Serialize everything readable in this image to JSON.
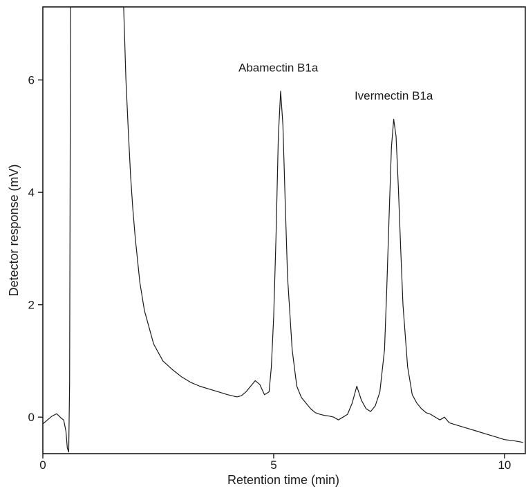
{
  "chart_data": {
    "type": "line",
    "title": "",
    "xlabel": "Retention time (min)",
    "ylabel": "Detector response (mV)",
    "xlim": [
      0,
      10.45
    ],
    "ylim": [
      -0.65,
      7.3
    ],
    "xticks": [
      0,
      5,
      10
    ],
    "xtick_labels": [
      "0",
      "5",
      "10"
    ],
    "yticks": [
      0,
      2,
      4,
      6
    ],
    "ytick_labels": [
      "0",
      "2",
      "4",
      "6"
    ],
    "grid": false,
    "legend": "none",
    "line_color": "#1a1a1a",
    "series": [
      {
        "x": [
          0.0,
          0.1,
          0.2,
          0.3,
          0.4,
          0.45,
          0.5,
          0.53,
          0.56,
          0.58,
          0.6,
          0.62,
          0.65,
          0.7,
          0.75,
          0.8,
          0.9,
          1.0,
          1.2,
          1.4,
          1.6,
          1.7,
          1.75,
          1.8,
          1.85,
          1.9,
          1.95,
          2.0,
          2.1,
          2.2,
          2.3,
          2.4,
          2.5,
          2.6,
          2.8,
          3.0,
          3.2,
          3.4,
          3.6,
          3.8,
          4.0,
          4.2,
          4.3,
          4.4,
          4.5,
          4.6,
          4.7,
          4.8,
          4.9,
          4.95,
          5.0,
          5.05,
          5.1,
          5.15,
          5.2,
          5.25,
          5.3,
          5.4,
          5.5,
          5.6,
          5.7,
          5.8,
          5.9,
          6.0,
          6.1,
          6.2,
          6.3,
          6.4,
          6.5,
          6.6,
          6.7,
          6.8,
          6.9,
          7.0,
          7.1,
          7.2,
          7.3,
          7.4,
          7.45,
          7.5,
          7.55,
          7.6,
          7.65,
          7.7,
          7.75,
          7.8,
          7.9,
          8.0,
          8.1,
          8.2,
          8.3,
          8.4,
          8.5,
          8.6,
          8.7,
          8.8,
          9.0,
          9.2,
          9.4,
          9.6,
          9.8,
          10.0,
          10.2,
          10.4
        ],
        "y": [
          -0.12,
          -0.05,
          0.02,
          0.06,
          -0.02,
          -0.05,
          -0.25,
          -0.55,
          -0.62,
          0.6,
          7.3,
          7.3,
          7.3,
          7.3,
          7.3,
          7.3,
          7.3,
          7.3,
          7.3,
          7.3,
          7.3,
          7.3,
          7.3,
          6.0,
          5.1,
          4.3,
          3.7,
          3.2,
          2.4,
          1.9,
          1.6,
          1.3,
          1.15,
          1.0,
          0.85,
          0.72,
          0.62,
          0.55,
          0.5,
          0.45,
          0.4,
          0.36,
          0.38,
          0.45,
          0.55,
          0.65,
          0.58,
          0.4,
          0.45,
          0.9,
          1.8,
          3.2,
          5.0,
          5.8,
          5.2,
          3.8,
          2.5,
          1.2,
          0.55,
          0.35,
          0.25,
          0.15,
          0.08,
          0.05,
          0.03,
          0.02,
          0.0,
          -0.05,
          0.0,
          0.05,
          0.25,
          0.55,
          0.3,
          0.15,
          0.1,
          0.2,
          0.45,
          1.2,
          2.3,
          3.6,
          4.8,
          5.3,
          5.0,
          4.1,
          3.0,
          2.0,
          0.9,
          0.4,
          0.25,
          0.15,
          0.08,
          0.05,
          0.0,
          -0.05,
          0.0,
          -0.1,
          -0.15,
          -0.2,
          -0.25,
          -0.3,
          -0.35,
          -0.4,
          -0.42,
          -0.45
        ]
      }
    ],
    "annotations": [
      {
        "text": "Abamectin B1a",
        "x": 5.1,
        "y": 6.15
      },
      {
        "text": "Ivermectin B1a",
        "x": 7.6,
        "y": 5.65
      }
    ]
  }
}
